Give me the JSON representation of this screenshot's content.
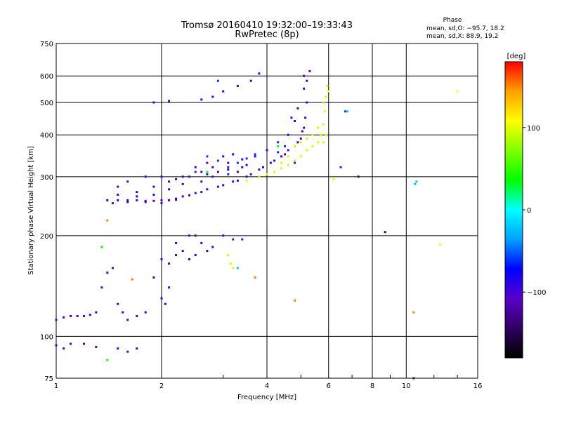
{
  "chart_data": {
    "type": "scatter",
    "title": "Tromsø 20160410 19:32:00–19:33:43",
    "subtitle": "RwPretec (8p)",
    "xlabel": "Frequency [MHz]",
    "ylabel": "Stationary phase Virtual Height [km]",
    "x_scale": "log",
    "y_scale": "log",
    "xlim": [
      1,
      16
    ],
    "ylim": [
      75,
      750
    ],
    "x_ticks": [
      1,
      2,
      4,
      6,
      8,
      10,
      16
    ],
    "x_tick_labels": [
      "1",
      "2",
      "4",
      "6",
      "8",
      "10",
      "16"
    ],
    "y_ticks": [
      75,
      100,
      200,
      300,
      400,
      500,
      600,
      750
    ],
    "y_tick_labels": [
      "75",
      "100",
      "200",
      "300",
      "400",
      "500",
      "600",
      "750"
    ],
    "grid": true,
    "phase_info": {
      "heading": "Phase",
      "line_o": "mean, sd,O: −95.7, 18.2",
      "line_x": "mean, sd,X:  88.9, 19.2"
    },
    "colorbar": {
      "label": "[deg]",
      "range": [
        -180,
        180
      ],
      "ticks": [
        100,
        0,
        -100
      ],
      "tick_labels": [
        "100",
        "0",
        "−100"
      ],
      "colors": [
        "#000000",
        "#300060",
        "#5a00c8",
        "#0000ff",
        "#00a0ff",
        "#00ffff",
        "#00ff00",
        "#80ff00",
        "#ffff00",
        "#ffa000",
        "#ff0000"
      ]
    },
    "series": [
      {
        "phase": -100,
        "points": [
          [
            1.0,
            112
          ],
          [
            1.05,
            114
          ],
          [
            1.1,
            115
          ],
          [
            1.15,
            115
          ],
          [
            1.2,
            115
          ],
          [
            1.25,
            116
          ],
          [
            1.3,
            118
          ],
          [
            1.35,
            140
          ],
          [
            1.4,
            155
          ],
          [
            1.45,
            160
          ],
          [
            1.5,
            125
          ],
          [
            1.55,
            118
          ],
          [
            1.6,
            112
          ],
          [
            1.7,
            115
          ],
          [
            1.8,
            118
          ],
          [
            1.9,
            150
          ],
          [
            2.0,
            130
          ],
          [
            2.05,
            125
          ],
          [
            2.1,
            140
          ],
          [
            1.45,
            250
          ],
          [
            1.5,
            255
          ],
          [
            1.6,
            255
          ],
          [
            1.7,
            255
          ],
          [
            1.8,
            254
          ],
          [
            1.9,
            254
          ],
          [
            2.0,
            255
          ],
          [
            2.1,
            255
          ],
          [
            2.2,
            258
          ],
          [
            2.3,
            262
          ],
          [
            2.5,
            268
          ],
          [
            2.7,
            275
          ],
          [
            3.0,
            283
          ],
          [
            3.3,
            292
          ],
          [
            3.6,
            305
          ],
          [
            3.9,
            320
          ],
          [
            4.2,
            335
          ],
          [
            4.5,
            350
          ],
          [
            4.8,
            370
          ],
          [
            5.0,
            390
          ],
          [
            5.1,
            420
          ],
          [
            5.2,
            500
          ],
          [
            5.3,
            620
          ],
          [
            5.2,
            580
          ],
          [
            5.1,
            550
          ],
          [
            4.7,
            450
          ],
          [
            4.6,
            400
          ],
          [
            4.3,
            380
          ],
          [
            4.0,
            360
          ],
          [
            3.7,
            345
          ],
          [
            3.4,
            338
          ],
          [
            3.1,
            330
          ],
          [
            2.8,
            320
          ],
          [
            2.6,
            310
          ],
          [
            2.4,
            300
          ],
          [
            2.2,
            295
          ],
          [
            2.0,
            300
          ],
          [
            1.8,
            300
          ],
          [
            1.6,
            290
          ],
          [
            1.5,
            280
          ],
          [
            1.7,
            270
          ],
          [
            2.5,
            320
          ],
          [
            2.7,
            330
          ],
          [
            3.0,
            345
          ],
          [
            3.2,
            350
          ],
          [
            2.8,
            300
          ],
          [
            2.6,
            290
          ],
          [
            3.3,
            310
          ],
          [
            3.5,
            325
          ],
          [
            2.3,
            285
          ],
          [
            2.1,
            275
          ],
          [
            1.9,
            265
          ],
          [
            2.4,
            200
          ],
          [
            2.6,
            190
          ],
          [
            2.8,
            185
          ],
          [
            3.0,
            200
          ],
          [
            2.2,
            175
          ],
          [
            2.0,
            170
          ],
          [
            2.3,
            180
          ],
          [
            2.5,
            175
          ],
          [
            3.6,
            580
          ],
          [
            3.3,
            560
          ],
          [
            3.0,
            540
          ],
          [
            2.8,
            520
          ],
          [
            2.6,
            510
          ],
          [
            1.9,
            500
          ],
          [
            2.1,
            505
          ],
          [
            3.8,
            610
          ],
          [
            1.1,
            95
          ],
          [
            1.2,
            95
          ],
          [
            1.3,
            93
          ],
          [
            1.5,
            92
          ],
          [
            1.6,
            90
          ],
          [
            1.7,
            92
          ],
          [
            1.05,
            92
          ],
          [
            1.0,
            94
          ]
        ]
      },
      {
        "phase": -120,
        "points": [
          [
            1.4,
            255
          ],
          [
            1.6,
            252
          ],
          [
            1.8,
            252
          ],
          [
            2.0,
            250
          ],
          [
            2.2,
            256
          ],
          [
            2.4,
            264
          ],
          [
            2.6,
            270
          ],
          [
            2.9,
            280
          ],
          [
            3.2,
            290
          ],
          [
            3.5,
            300
          ],
          [
            3.8,
            315
          ],
          [
            4.1,
            330
          ],
          [
            4.4,
            345
          ],
          [
            4.6,
            360
          ],
          [
            4.9,
            380
          ],
          [
            5.05,
            410
          ],
          [
            5.15,
            450
          ],
          [
            3.4,
            320
          ],
          [
            3.1,
            315
          ],
          [
            2.9,
            310
          ],
          [
            2.7,
            305
          ],
          [
            2.5,
            200
          ],
          [
            2.2,
            190
          ],
          [
            2.1,
            165
          ],
          [
            2.4,
            170
          ],
          [
            2.7,
            180
          ],
          [
            1.5,
            265
          ],
          [
            1.7,
            262
          ],
          [
            1.9,
            280
          ],
          [
            2.1,
            290
          ],
          [
            2.3,
            300
          ],
          [
            5.1,
            600
          ],
          [
            4.9,
            480
          ],
          [
            4.8,
            440
          ]
        ]
      },
      {
        "phase": -60,
        "points": [
          [
            2.7,
            345
          ],
          [
            2.9,
            335
          ],
          [
            3.1,
            320
          ],
          [
            3.3,
            330
          ],
          [
            3.5,
            340
          ],
          [
            3.7,
            350
          ],
          [
            4.3,
            355
          ],
          [
            4.5,
            370
          ],
          [
            4.8,
            330
          ],
          [
            3.2,
            195
          ],
          [
            3.4,
            195
          ],
          [
            2.9,
            580
          ],
          [
            3.1,
            305
          ],
          [
            2.5,
            310
          ],
          [
            6.5,
            320
          ],
          [
            6.7,
            470
          ]
        ]
      },
      {
        "phase": 95,
        "points": [
          [
            3.5,
            292
          ],
          [
            3.8,
            300
          ],
          [
            4.0,
            305
          ],
          [
            4.2,
            310
          ],
          [
            4.4,
            318
          ],
          [
            4.6,
            325
          ],
          [
            4.8,
            335
          ],
          [
            5.0,
            345
          ],
          [
            5.2,
            360
          ],
          [
            5.4,
            370
          ],
          [
            5.6,
            380
          ],
          [
            5.7,
            400
          ],
          [
            5.8,
            430
          ],
          [
            5.85,
            470
          ],
          [
            5.9,
            520
          ],
          [
            5.95,
            560
          ],
          [
            5.8,
            500
          ],
          [
            5.6,
            420
          ],
          [
            5.4,
            400
          ],
          [
            5.2,
            390
          ],
          [
            5.0,
            380
          ],
          [
            4.8,
            370
          ],
          [
            4.6,
            345
          ],
          [
            4.4,
            330
          ],
          [
            5.9,
            400
          ],
          [
            5.8,
            380
          ],
          [
            3.1,
            175
          ],
          [
            3.15,
            165
          ],
          [
            3.2,
            160
          ],
          [
            6.2,
            295
          ]
        ]
      },
      {
        "phase": 40,
        "points": [
          [
            1.35,
            185
          ],
          [
            1.4,
            85
          ],
          [
            2.7,
            310
          ],
          [
            4.3,
            370
          ]
        ]
      },
      {
        "phase": 150,
        "points": [
          [
            1.4,
            222
          ],
          [
            1.65,
            148
          ],
          [
            3.7,
            150
          ],
          [
            4.8,
            128
          ],
          [
            10.5,
            118
          ]
        ]
      },
      {
        "phase": 110,
        "points": [
          [
            12.5,
            188
          ],
          [
            14.0,
            540
          ],
          [
            6.0,
            540
          ]
        ]
      },
      {
        "phase": -20,
        "points": [
          [
            6.8,
            470
          ],
          [
            10.7,
            290
          ],
          [
            10.6,
            285
          ],
          [
            3.3,
            160
          ]
        ]
      },
      {
        "phase": -135,
        "points": [
          [
            8.7,
            205
          ],
          [
            7.3,
            300
          ],
          [
            10.5,
            75
          ]
        ]
      }
    ]
  }
}
